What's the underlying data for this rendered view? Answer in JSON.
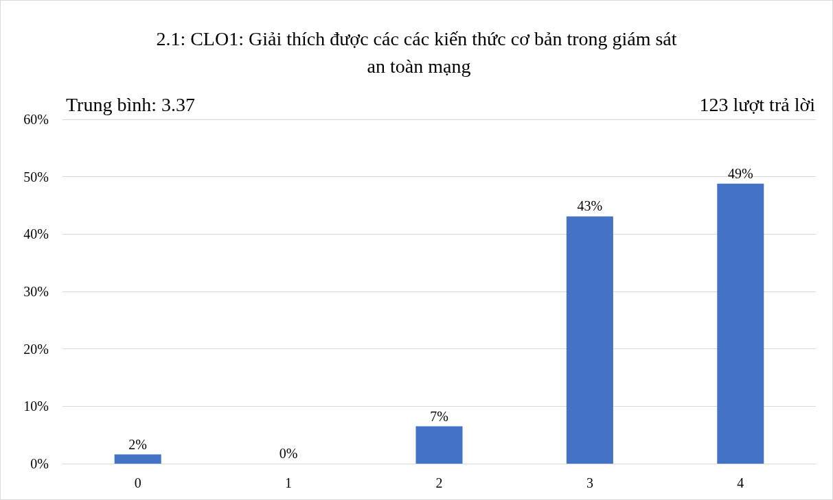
{
  "chart_data": {
    "type": "bar",
    "title": "2.1: CLO1: Giải thích được các các kiến thức cơ bản trong giám sát an toàn mạng",
    "categories": [
      "0",
      "1",
      "2",
      "3",
      "4"
    ],
    "values": [
      1.6,
      0,
      6.5,
      43.1,
      48.8
    ],
    "value_labels": [
      "2%",
      "0%",
      "7%",
      "43%",
      "49%"
    ],
    "color": "#4472c4",
    "ylim": [
      0,
      60
    ],
    "yticks": [
      {
        "value": 0,
        "label": "0%"
      },
      {
        "value": 10,
        "label": "10%"
      },
      {
        "value": 20,
        "label": "20%"
      },
      {
        "value": 30,
        "label": "30%"
      },
      {
        "value": 40,
        "label": "40%"
      },
      {
        "value": 50,
        "label": "50%"
      },
      {
        "value": 60,
        "label": "60%"
      }
    ],
    "grid": "y",
    "annotations": [
      "Trung bình: 3.37",
      "123 lượt trả lời"
    ]
  }
}
